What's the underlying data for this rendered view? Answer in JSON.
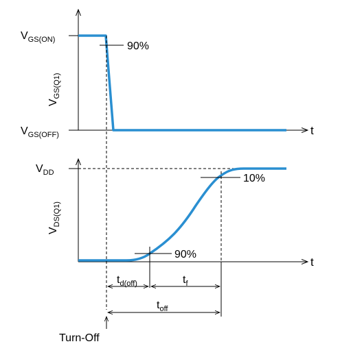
{
  "colors": {
    "waveform": "#2a8fd1",
    "axis": "#000000"
  },
  "top_plot": {
    "v_on": {
      "main": "V",
      "sub": "GS(ON)"
    },
    "v_off": {
      "main": "V",
      "sub": "GS(OFF)"
    },
    "ylabel": {
      "main": "V",
      "sub": "GS(Q1)"
    },
    "xlabel": "t",
    "pct_label": "90%"
  },
  "bottom_plot": {
    "vdd": {
      "main": "V",
      "sub": "DD"
    },
    "ylabel": {
      "main": "V",
      "sub": "DS(Q1)"
    },
    "xlabel": "t",
    "pct_10": "10%",
    "pct_90": "90%"
  },
  "timing": {
    "td_off": {
      "main": "t",
      "sub": "d(off)"
    },
    "tf": {
      "main": "t",
      "sub": "f"
    },
    "toff": {
      "main": "t",
      "sub": "off"
    },
    "event": "Turn-Off"
  }
}
